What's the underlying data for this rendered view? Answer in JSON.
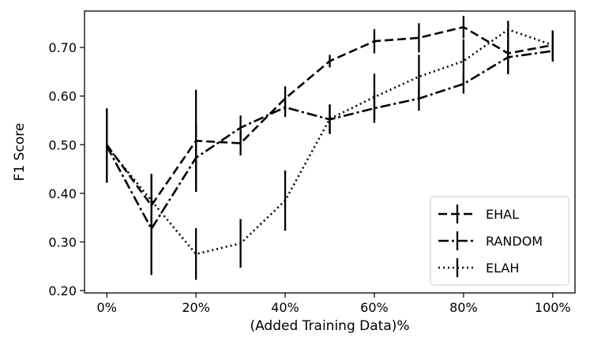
{
  "chart_data": {
    "type": "line",
    "title": "",
    "xlabel": "(Added Training Data)%",
    "ylabel": "F1 Score",
    "x": [
      0,
      10,
      20,
      30,
      40,
      50,
      60,
      70,
      80,
      90,
      100
    ],
    "xticks": [
      0,
      20,
      40,
      60,
      80,
      100
    ],
    "xtick_labels": [
      "0%",
      "20%",
      "40%",
      "60%",
      "80%",
      "100%"
    ],
    "xlim": [
      -5,
      105
    ],
    "yticks": [
      0.2,
      0.3,
      0.4,
      0.5,
      0.6,
      0.7
    ],
    "ytick_labels": [
      "0.20",
      "0.30",
      "0.40",
      "0.50",
      "0.60",
      "0.70"
    ],
    "ylim": [
      0.195,
      0.775
    ],
    "grid": false,
    "legend_position": "bottom-right",
    "series": [
      {
        "name": "EHAL",
        "style": "dashed",
        "values": [
          0.5,
          0.375,
          0.508,
          0.503,
          0.595,
          0.672,
          0.713,
          0.72,
          0.742,
          0.688,
          0.705
        ],
        "errors": [
          0.075,
          0.065,
          0.105,
          0.025,
          0.025,
          0.013,
          0.025,
          0.03,
          0.023,
          0.04,
          0.03
        ]
      },
      {
        "name": "RANDOM",
        "style": "dashdot",
        "values": [
          0.497,
          0.327,
          0.473,
          0.535,
          0.577,
          0.552,
          0.575,
          0.595,
          0.625,
          0.68,
          0.693
        ],
        "errors": [
          0.075,
          0.095,
          0.07,
          0.025,
          0.02,
          0.03,
          0.03,
          0.025,
          0.02,
          0.035,
          0.022
        ]
      },
      {
        "name": "ELAH",
        "style": "dotted",
        "values": [
          0.497,
          0.385,
          0.275,
          0.297,
          0.385,
          0.553,
          0.598,
          0.64,
          0.672,
          0.737,
          0.705
        ],
        "errors": [
          0.075,
          0.055,
          0.053,
          0.05,
          0.062,
          0.03,
          0.048,
          0.045,
          0.045,
          0.018,
          0.03
        ]
      }
    ]
  }
}
